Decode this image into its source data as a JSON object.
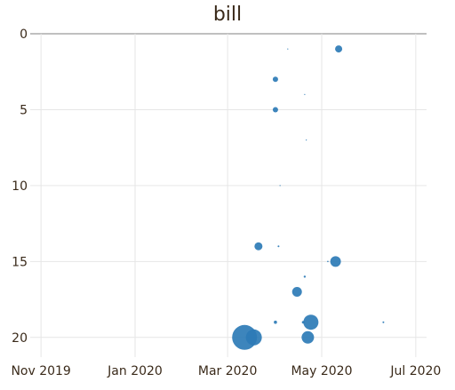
{
  "chart_data": {
    "type": "scatter",
    "title": "bill",
    "xlabel": "",
    "ylabel": "",
    "x_axis": {
      "type": "date",
      "range": [
        "2019-10-25",
        "2020-07-08"
      ],
      "ticks": [
        {
          "date": "2019-11-01",
          "label": "Nov 2019"
        },
        {
          "date": "2020-01-01",
          "label": "Jan 2020"
        },
        {
          "date": "2020-03-01",
          "label": "Mar 2020"
        },
        {
          "date": "2020-05-01",
          "label": "May 2020"
        },
        {
          "date": "2020-07-01",
          "label": "Jul 2020"
        }
      ]
    },
    "y_axis": {
      "reversed": true,
      "range": [
        0,
        21.3
      ],
      "ticks": [
        0,
        5,
        10,
        15,
        20
      ]
    },
    "grid": true,
    "marker_color": "#2c7bb6",
    "points": [
      {
        "date": "2020-03-12",
        "y": 20,
        "size": 14
      },
      {
        "date": "2020-03-18",
        "y": 20,
        "size": 9
      },
      {
        "date": "2020-04-22",
        "y": 20,
        "size": 7
      },
      {
        "date": "2020-04-24",
        "y": 19,
        "size": 8.5
      },
      {
        "date": "2020-04-19",
        "y": 19,
        "size": 1.5
      },
      {
        "date": "2020-06-10",
        "y": 19,
        "size": 1
      },
      {
        "date": "2020-04-01",
        "y": 19,
        "size": 1.8
      },
      {
        "date": "2020-04-15",
        "y": 17,
        "size": 5.5
      },
      {
        "date": "2020-04-20",
        "y": 16,
        "size": 1.2
      },
      {
        "date": "2020-05-10",
        "y": 15,
        "size": 6
      },
      {
        "date": "2020-05-05",
        "y": 15,
        "size": 0.8
      },
      {
        "date": "2020-03-21",
        "y": 14,
        "size": 4.5
      },
      {
        "date": "2020-04-03",
        "y": 14,
        "size": 1
      },
      {
        "date": "2020-04-04",
        "y": 10,
        "size": 0.6
      },
      {
        "date": "2020-04-21",
        "y": 7,
        "size": 0.6
      },
      {
        "date": "2020-04-01",
        "y": 5,
        "size": 3
      },
      {
        "date": "2020-04-20",
        "y": 4,
        "size": 0.6
      },
      {
        "date": "2020-04-01",
        "y": 3,
        "size": 3
      },
      {
        "date": "2020-04-09",
        "y": 1,
        "size": 0.6
      },
      {
        "date": "2020-05-12",
        "y": 1,
        "size": 4
      }
    ]
  }
}
